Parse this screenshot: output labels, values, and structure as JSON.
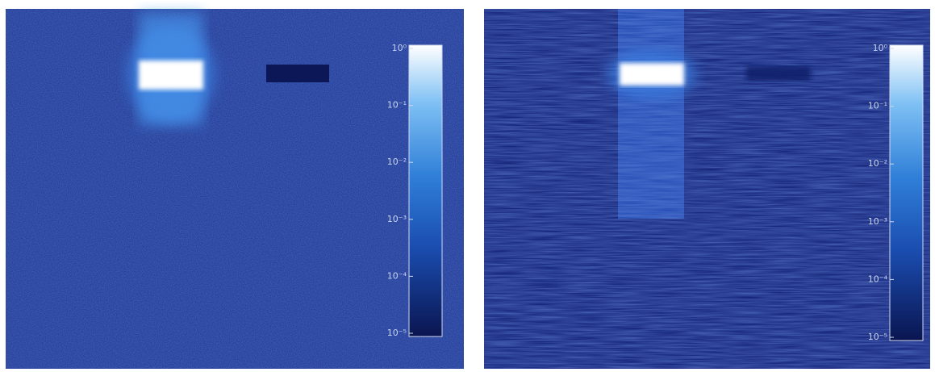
{
  "panels": [
    {
      "colorbar_ticks": [
        "10⁰",
        "10⁻¹",
        "10⁻²",
        "10⁻³",
        "10⁻⁴",
        "10⁻⁵"
      ]
    },
    {
      "colorbar_ticks": [
        "10⁰",
        "10⁻¹",
        "10⁻²",
        "10⁻³",
        "10⁻⁴",
        "10⁻⁵"
      ]
    }
  ]
}
